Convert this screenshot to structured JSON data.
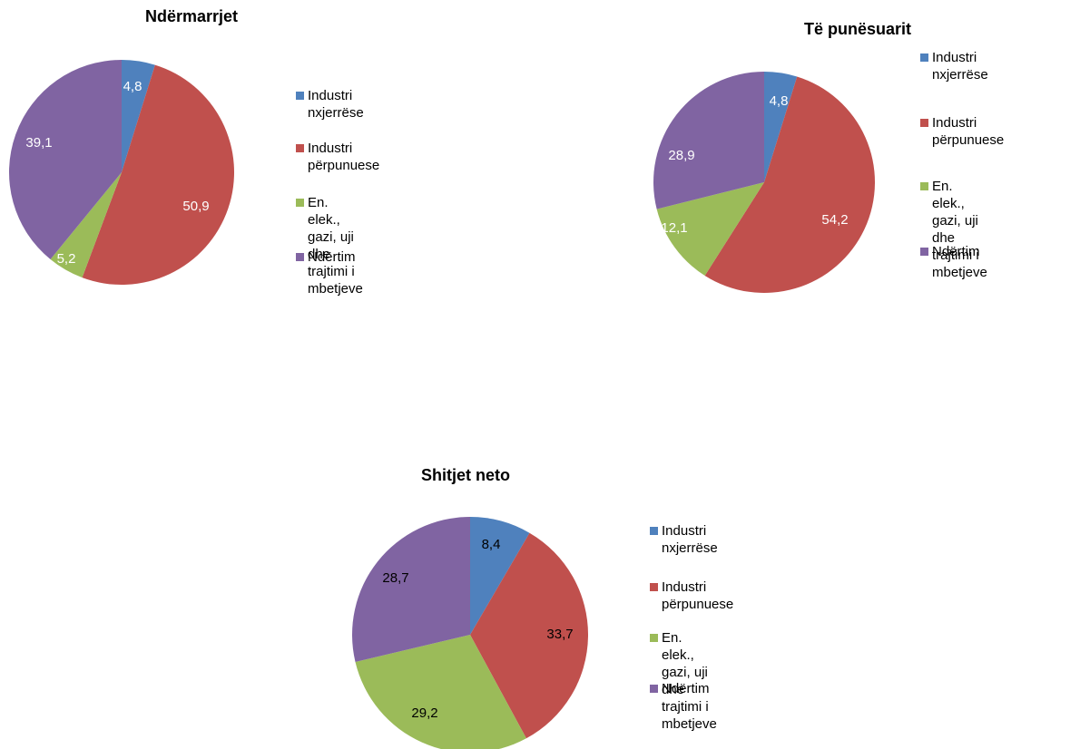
{
  "colors": {
    "Industri nxjerrëse": "#4f81bd",
    "Industri përpunuese": "#c0504d",
    "En. elek., gazi, uji dhe trajtimi i mbetjeve": "#9bbb59",
    "Ndërtim": "#8064a2"
  },
  "chart_data": [
    {
      "type": "pie",
      "title": "Ndërmarrjet",
      "categories": [
        "Industri nxjerrëse",
        "Industri përpunuese",
        "En. elek., gazi, uji dhe trajtimi i mbetjeve",
        "Ndërtim"
      ],
      "values": [
        4.8,
        50.9,
        5.2,
        39.1
      ],
      "labels": [
        "4,8",
        "50,9",
        "5,2",
        "39,1"
      ],
      "legend_lines": [
        [
          "Industri nxjerrëse"
        ],
        [
          "Industri përpunuese"
        ],
        [
          "En. elek., gazi, uji dhe",
          "trajtimi i mbetjeve"
        ],
        [
          "Ndërtim"
        ]
      ],
      "legend": "right"
    },
    {
      "type": "pie",
      "title": "Të punësuarit",
      "categories": [
        "Industri nxjerrëse",
        "Industri përpunuese",
        "En. elek., gazi, uji dhe trajtimi i mbetjeve",
        "Ndërtim"
      ],
      "values": [
        4.8,
        54.2,
        12.1,
        28.9
      ],
      "labels": [
        "4,8",
        "54,2",
        "12,1",
        "28,9"
      ],
      "legend_lines": [
        [
          "Industri nxjerrëse"
        ],
        [
          "Industri përpunuese"
        ],
        [
          "En. elek., gazi, uji",
          "dhe trajtimi i",
          "mbetjeve"
        ],
        [
          "Ndërtim"
        ]
      ],
      "legend": "right"
    },
    {
      "type": "pie",
      "title": "Shitjet neto",
      "categories": [
        "Industri nxjerrëse",
        "Industri përpunuese",
        "En. elek., gazi, uji dhe trajtimi i mbetjeve",
        "Ndërtim"
      ],
      "values": [
        8.4,
        33.7,
        29.2,
        28.7
      ],
      "labels": [
        "8,4",
        "33,7",
        "29,2",
        "28,7"
      ],
      "legend_lines": [
        [
          "Industri nxjerrëse"
        ],
        [
          "Industri përpunuese"
        ],
        [
          "En. elek., gazi, uji dhe",
          "trajtimi i mbetjeve"
        ],
        [
          "Ndërtim"
        ]
      ],
      "legend": "right"
    }
  ]
}
